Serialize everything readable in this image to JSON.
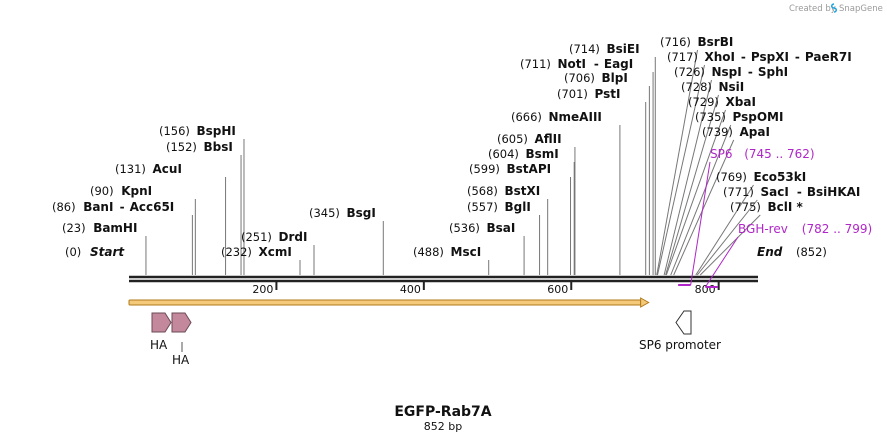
{
  "header": {
    "credit_text": "Created by",
    "brand": "SnapGene",
    "logo_color": "#1aa3dd"
  },
  "map": {
    "title": "EGFP-Rab7A",
    "length_label": "852 bp",
    "total_bp": 852,
    "ticks": [
      {
        "bp": 200,
        "label": "200"
      },
      {
        "bp": 400,
        "label": "400"
      },
      {
        "bp": 600,
        "label": "600"
      },
      {
        "bp": 800,
        "label": "800"
      }
    ],
    "start_marker": {
      "pos_label": "(0)",
      "name": "Start"
    },
    "end_marker": {
      "pos_label": "(852)",
      "name": "End"
    },
    "sites": [
      {
        "pos_label": "(23)",
        "name": "BamHI",
        "bp": 23
      },
      {
        "pos_label": "(86)",
        "name": "BanI",
        "extra": "Acc65I",
        "bp": 86
      },
      {
        "pos_label": "(90)",
        "name": "KpnI",
        "bp": 90
      },
      {
        "pos_label": "(131)",
        "name": "AcuI",
        "bp": 131
      },
      {
        "pos_label": "(152)",
        "name": "BbsI",
        "bp": 152
      },
      {
        "pos_label": "(156)",
        "name": "BspHI",
        "bp": 156
      },
      {
        "pos_label": "(232)",
        "name": "XcmI",
        "bp": 232
      },
      {
        "pos_label": "(251)",
        "name": "DrdI",
        "bp": 251
      },
      {
        "pos_label": "(345)",
        "name": "BsgI",
        "bp": 345
      },
      {
        "pos_label": "(488)",
        "name": "MscI",
        "bp": 488
      },
      {
        "pos_label": "(536)",
        "name": "BsaI",
        "bp": 536
      },
      {
        "pos_label": "(557)",
        "name": "BglI",
        "bp": 557
      },
      {
        "pos_label": "(568)",
        "name": "BstXI",
        "bp": 568
      },
      {
        "pos_label": "(599)",
        "name": "BstAPI",
        "bp": 599
      },
      {
        "pos_label": "(604)",
        "name": "BsmI",
        "bp": 604
      },
      {
        "pos_label": "(605)",
        "name": "AflII",
        "bp": 605
      },
      {
        "pos_label": "(666)",
        "name": "NmeAIII",
        "bp": 666
      },
      {
        "pos_label": "(701)",
        "name": "PstI",
        "bp": 701
      },
      {
        "pos_label": "(706)",
        "name": "BlpI",
        "bp": 706
      },
      {
        "pos_label": "(711)",
        "name": "NotI",
        "extra": "EagI",
        "bp": 711
      },
      {
        "pos_label": "(714)",
        "name": "BsiEI",
        "bp": 714
      },
      {
        "pos_label": "(716)",
        "name": "BsrBI",
        "bp": 716
      },
      {
        "pos_label": "(717)",
        "name": "XhoI",
        "extra": "PspXI",
        "extra2": "PaeR7I",
        "bp": 717
      },
      {
        "pos_label": "(726)",
        "name": "NspI",
        "extra": "SphI",
        "bp": 726
      },
      {
        "pos_label": "(728)",
        "name": "NsiI",
        "bp": 728
      },
      {
        "pos_label": "(729)",
        "name": "XbaI",
        "bp": 729
      },
      {
        "pos_label": "(735)",
        "name": "PspOMI",
        "bp": 735
      },
      {
        "pos_label": "(739)",
        "name": "ApaI",
        "bp": 739
      },
      {
        "pos_label": "(769)",
        "name": "Eco53kI",
        "bp": 769
      },
      {
        "pos_label": "(771)",
        "name": "SacI",
        "extra": "BsiHKAI",
        "bp": 771
      },
      {
        "pos_label": "(775)",
        "name": "BclI *",
        "bp": 775
      }
    ],
    "primers": [
      {
        "name": "SP6",
        "range": "(745 .. 762)",
        "start": 745,
        "end": 762,
        "color": "#b026c8"
      },
      {
        "name": "BGH-rev",
        "range": "(782 .. 799)",
        "start": 782,
        "end": 799,
        "color": "#b026c8"
      }
    ],
    "features": {
      "orf": {
        "start": 0,
        "end": 705,
        "color": "#f5c97a",
        "edge_color": "#b07a1a"
      },
      "ha_tags": [
        {
          "label": "HA",
          "color": "#c4889d"
        },
        {
          "label": "HA",
          "color": "#c4889d"
        }
      ],
      "promoter": {
        "label": "SP6 promoter",
        "color": "#ffffff"
      }
    }
  }
}
